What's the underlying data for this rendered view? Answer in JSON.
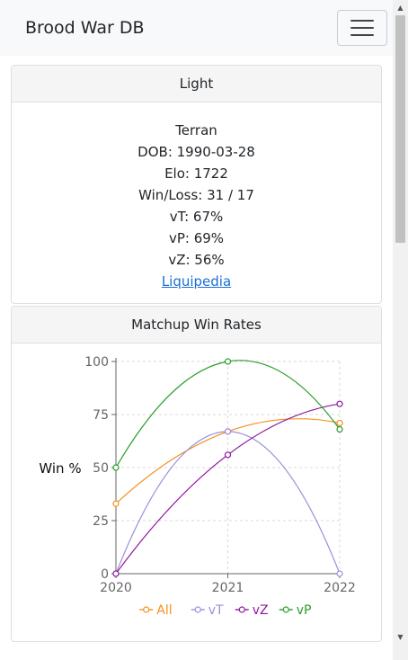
{
  "navbar": {
    "brand": "Brood War DB",
    "menu_icon": "hamburger-menu-icon"
  },
  "player": {
    "name": "Light",
    "race": "Terran",
    "dob": "DOB: 1990-03-28",
    "elo": "Elo: 1722",
    "win_loss": "Win/Loss: 31 / 17",
    "vt": "vT: 67%",
    "vp": "vP: 69%",
    "vz": "vZ: 56%",
    "link": "Liquipedia"
  },
  "chart_card": {
    "title": "Matchup Win Rates"
  },
  "chart_data": {
    "type": "line",
    "title": "",
    "xlabel": "",
    "ylabel": "Win %",
    "x": [
      "2020",
      "2021",
      "2022"
    ],
    "ylim": [
      0,
      100
    ],
    "yticks": [
      "0",
      "25",
      "50",
      "75",
      "100"
    ],
    "grid": true,
    "legend_position": "bottom",
    "series": [
      {
        "name": "All",
        "color": "#f5901e",
        "values": [
          33,
          67,
          71
        ]
      },
      {
        "name": "vT",
        "color": "#9a8fdb",
        "values": [
          0,
          67,
          0
        ]
      },
      {
        "name": "vZ",
        "color": "#8e1a9e",
        "values": [
          0,
          56,
          80
        ]
      },
      {
        "name": "vP",
        "color": "#2a9d2a",
        "values": [
          50,
          100,
          68
        ]
      }
    ]
  }
}
